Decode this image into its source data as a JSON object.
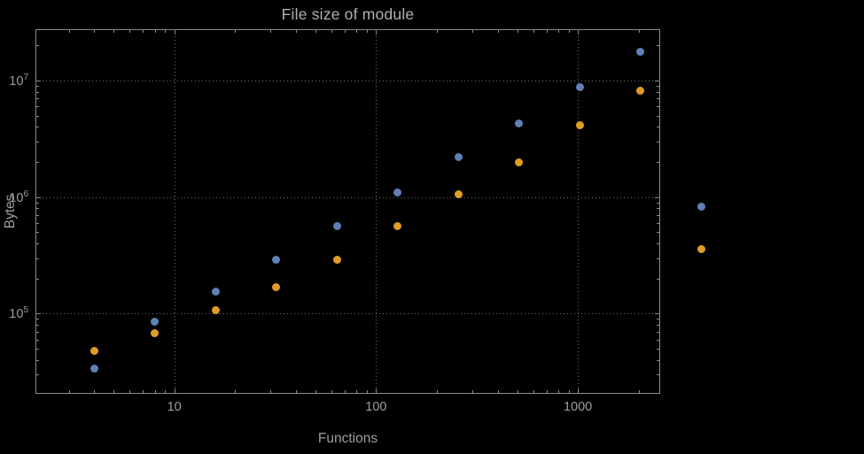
{
  "chart_data": {
    "type": "scatter",
    "title": "File size of module",
    "xlabel": "Functions",
    "ylabel": "Bytes",
    "x_scale": "log",
    "y_scale": "log",
    "x_range": [
      2.05,
      2560
    ],
    "y_range": [
      20500,
      27500000
    ],
    "x_major_ticks": [
      10,
      100,
      1000
    ],
    "y_major_ticks": [
      100000,
      1000000,
      10000000
    ],
    "grid": "dotted",
    "legend_position": "none",
    "x": [
      4,
      8,
      16,
      32,
      64,
      128,
      256,
      512,
      1024,
      2048,
      4096
    ],
    "series": [
      {
        "name": "blue",
        "color": "#5e81b5",
        "values": [
          34000,
          85000,
          155000,
          290000,
          560000,
          1100000,
          2200000,
          4300000,
          8800000,
          17500000,
          830000
        ]
      },
      {
        "name": "orange",
        "color": "#e19c24",
        "values": [
          48000,
          68000,
          107000,
          170000,
          290000,
          560000,
          1050000,
          2000000,
          4100000,
          8200000,
          360000
        ]
      }
    ]
  },
  "style": {
    "background": "#000000",
    "frame_color": "#8c8c8c",
    "grid_color": "#6f6f6f",
    "text_color": "#9e9e9e",
    "title_color": "#b0b0b0"
  }
}
